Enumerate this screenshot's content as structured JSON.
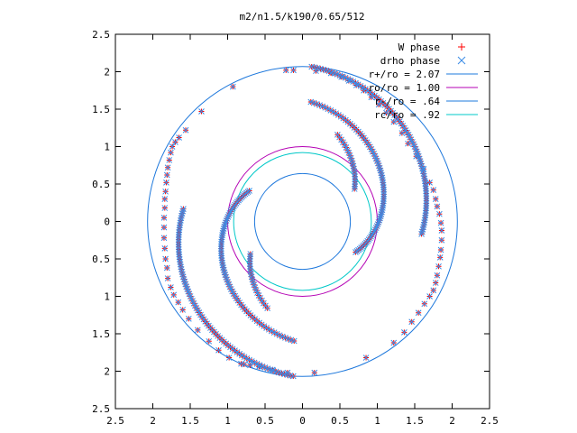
{
  "chart_data": {
    "type": "scatter",
    "title": "m2/n1.5/k190/0.65/512",
    "xlabel": "",
    "ylabel": "",
    "xlim": [
      -2.5,
      2.5
    ],
    "ylim": [
      -2.5,
      2.5
    ],
    "grid": false,
    "legend_position": "top-right",
    "x_ticks": [
      -2.5,
      -2,
      -1.5,
      -1,
      -0.5,
      0,
      0.5,
      1,
      1.5,
      2,
      2.5
    ],
    "x_tick_labels": [
      "2.5",
      "2",
      "1.5",
      "1",
      "0.5",
      "0",
      "0.5",
      "1",
      "1.5",
      "2",
      "2.5"
    ],
    "y_ticks": [
      2.5,
      2,
      1.5,
      1,
      0.5,
      0,
      -0.5,
      -1,
      -1.5,
      -2,
      -2.5
    ],
    "y_tick_labels": [
      "2.5",
      "2",
      "1.5",
      "1",
      "0.5",
      "0",
      "0.5",
      "1",
      "1.5",
      "2",
      "2.5"
    ],
    "legend": [
      {
        "label": "W phase",
        "marker": "+",
        "color": "#ff0000"
      },
      {
        "label": "drho phase",
        "marker": "x",
        "color": "#3c8ce6"
      },
      {
        "label": "r+/ro = 2.07",
        "marker": "line",
        "color": "#1e78dc"
      },
      {
        "label": "ro/ro = 1.00",
        "marker": "line",
        "color": "#b400b4"
      },
      {
        "label": "r-/ro = .64",
        "marker": "line",
        "color": "#1e78dc"
      },
      {
        "label": "rc/ro = .92",
        "marker": "line",
        "color": "#00c8c8"
      }
    ],
    "circles": [
      {
        "name": "r+/ro = 2.07",
        "radius": 2.07,
        "color": "#1e78dc"
      },
      {
        "name": "ro/ro = 1.00",
        "radius": 1.0,
        "color": "#b400b4"
      },
      {
        "name": "r-/ro = .64",
        "radius": 0.64,
        "color": "#1e78dc"
      },
      {
        "name": "rc/ro = .92",
        "radius": 0.92,
        "color": "#00c8c8"
      }
    ],
    "series": [
      {
        "name": "W phase",
        "marker": "+",
        "color": "#ff0000",
        "points": [
          [
            -0.12,
            2.02
          ],
          [
            0.18,
            2.01
          ],
          [
            0.38,
            1.98
          ],
          [
            0.52,
            1.93
          ],
          [
            0.62,
            1.88
          ],
          [
            0.72,
            1.82
          ],
          [
            0.82,
            1.75
          ],
          [
            0.92,
            1.66
          ],
          [
            1.02,
            1.56
          ],
          [
            1.12,
            1.45
          ],
          [
            1.22,
            1.33
          ],
          [
            1.33,
            1.18
          ],
          [
            1.41,
            1.04
          ],
          [
            1.52,
            0.87
          ],
          [
            1.62,
            0.7
          ],
          [
            1.7,
            0.52
          ],
          [
            1.75,
            0.42
          ],
          [
            1.78,
            0.3
          ],
          [
            1.8,
            0.2
          ],
          [
            1.83,
            0.1
          ],
          [
            1.85,
            -0.02
          ],
          [
            1.86,
            -0.12
          ],
          [
            1.86,
            -0.25
          ],
          [
            1.85,
            -0.38
          ],
          [
            1.84,
            -0.48
          ],
          [
            1.82,
            -0.6
          ],
          [
            1.8,
            -0.72
          ],
          [
            1.78,
            -0.82
          ],
          [
            1.75,
            -0.92
          ],
          [
            1.7,
            -1.0
          ],
          [
            1.63,
            -1.1
          ],
          [
            1.55,
            -1.22
          ],
          [
            1.46,
            -1.34
          ],
          [
            1.36,
            -1.48
          ],
          [
            1.22,
            -1.62
          ],
          [
            0.85,
            -1.82
          ],
          [
            0.16,
            -2.02
          ],
          [
            -0.2,
            -2.02
          ],
          [
            -0.4,
            -1.98
          ],
          [
            -0.58,
            -1.94
          ],
          [
            -0.7,
            -1.92
          ],
          [
            -0.78,
            -1.91
          ],
          [
            -0.82,
            -1.9
          ],
          [
            -0.98,
            -1.82
          ],
          [
            -1.12,
            -1.72
          ],
          [
            -1.25,
            -1.6
          ],
          [
            -1.4,
            -1.45
          ],
          [
            -1.52,
            -1.3
          ],
          [
            -1.6,
            -1.18
          ],
          [
            -1.66,
            -1.08
          ],
          [
            -1.72,
            -0.98
          ],
          [
            -1.76,
            -0.88
          ],
          [
            -1.8,
            -0.76
          ],
          [
            -1.81,
            -0.62
          ],
          [
            -1.83,
            -0.5
          ],
          [
            -1.84,
            -0.36
          ],
          [
            -1.85,
            -0.22
          ],
          [
            -1.85,
            -0.08
          ],
          [
            -1.85,
            0.05
          ],
          [
            -1.84,
            0.18
          ],
          [
            -1.84,
            0.3
          ],
          [
            -1.83,
            0.4
          ],
          [
            -1.82,
            0.52
          ],
          [
            -1.81,
            0.62
          ],
          [
            -1.8,
            0.72
          ],
          [
            -1.78,
            0.82
          ],
          [
            -1.76,
            0.92
          ],
          [
            -1.74,
            1.0
          ],
          [
            -1.7,
            1.06
          ],
          [
            -1.65,
            1.12
          ],
          [
            -1.56,
            1.22
          ],
          [
            -1.35,
            1.47
          ],
          [
            -0.93,
            1.8
          ],
          [
            -0.22,
            2.02
          ]
        ],
        "arms": [
          {
            "r_start": 2.07,
            "r_end": 1.6,
            "theta_start_deg": 86.6,
            "theta_end_deg": -6.0,
            "count": 85
          },
          {
            "r_start": 1.6,
            "r_end": 0.82,
            "theta_start_deg": 266.0,
            "theta_end_deg": 150.0,
            "count": 80
          },
          {
            "r_start": 2.07,
            "r_end": 1.6,
            "theta_start_deg": 266.6,
            "theta_end_deg": 174.0,
            "count": 85
          },
          {
            "r_start": 1.6,
            "r_end": 0.82,
            "theta_start_deg": 86.0,
            "theta_end_deg": -30.0,
            "count": 80
          },
          {
            "r_start": 0.82,
            "r_end": 1.25,
            "theta_start_deg": 32.0,
            "theta_end_deg": 68.0,
            "count": 22
          },
          {
            "r_start": 0.82,
            "r_end": 1.25,
            "theta_start_deg": 212.0,
            "theta_end_deg": 248.0,
            "count": 22
          }
        ]
      },
      {
        "name": "drho phase",
        "marker": "x",
        "color": "#3c8ce6",
        "points": [
          [
            -0.12,
            2.02
          ],
          [
            0.18,
            2.01
          ],
          [
            0.38,
            1.98
          ],
          [
            0.52,
            1.93
          ],
          [
            0.62,
            1.88
          ],
          [
            0.72,
            1.82
          ],
          [
            0.82,
            1.75
          ],
          [
            0.92,
            1.66
          ],
          [
            1.02,
            1.56
          ],
          [
            1.12,
            1.45
          ],
          [
            1.22,
            1.33
          ],
          [
            1.33,
            1.18
          ],
          [
            1.41,
            1.04
          ],
          [
            1.52,
            0.87
          ],
          [
            1.62,
            0.7
          ],
          [
            1.7,
            0.52
          ],
          [
            1.75,
            0.42
          ],
          [
            1.78,
            0.3
          ],
          [
            1.8,
            0.2
          ],
          [
            1.83,
            0.1
          ],
          [
            1.85,
            -0.02
          ],
          [
            1.86,
            -0.12
          ],
          [
            1.86,
            -0.25
          ],
          [
            1.85,
            -0.38
          ],
          [
            1.84,
            -0.48
          ],
          [
            1.82,
            -0.6
          ],
          [
            1.8,
            -0.72
          ],
          [
            1.78,
            -0.82
          ],
          [
            1.75,
            -0.92
          ],
          [
            1.7,
            -1.0
          ],
          [
            1.63,
            -1.1
          ],
          [
            1.55,
            -1.22
          ],
          [
            1.46,
            -1.34
          ],
          [
            1.36,
            -1.48
          ],
          [
            1.22,
            -1.62
          ],
          [
            0.85,
            -1.82
          ],
          [
            0.16,
            -2.02
          ],
          [
            -0.2,
            -2.02
          ],
          [
            -0.4,
            -1.98
          ],
          [
            -0.58,
            -1.94
          ],
          [
            -0.7,
            -1.92
          ],
          [
            -0.78,
            -1.91
          ],
          [
            -0.82,
            -1.9
          ],
          [
            -0.98,
            -1.82
          ],
          [
            -1.12,
            -1.72
          ],
          [
            -1.25,
            -1.6
          ],
          [
            -1.4,
            -1.45
          ],
          [
            -1.52,
            -1.3
          ],
          [
            -1.6,
            -1.18
          ],
          [
            -1.66,
            -1.08
          ],
          [
            -1.72,
            -0.98
          ],
          [
            -1.76,
            -0.88
          ],
          [
            -1.8,
            -0.76
          ],
          [
            -1.81,
            -0.62
          ],
          [
            -1.83,
            -0.5
          ],
          [
            -1.84,
            -0.36
          ],
          [
            -1.85,
            -0.22
          ],
          [
            -1.85,
            -0.08
          ],
          [
            -1.85,
            0.05
          ],
          [
            -1.84,
            0.18
          ],
          [
            -1.84,
            0.3
          ],
          [
            -1.83,
            0.4
          ],
          [
            -1.82,
            0.52
          ],
          [
            -1.81,
            0.62
          ],
          [
            -1.8,
            0.72
          ],
          [
            -1.78,
            0.82
          ],
          [
            -1.76,
            0.92
          ],
          [
            -1.74,
            1.0
          ],
          [
            -1.7,
            1.06
          ],
          [
            -1.65,
            1.12
          ],
          [
            -1.56,
            1.22
          ],
          [
            -1.35,
            1.47
          ],
          [
            -0.93,
            1.8
          ],
          [
            -0.22,
            2.02
          ]
        ],
        "arms": [
          {
            "r_start": 2.07,
            "r_end": 1.6,
            "theta_start_deg": 86.6,
            "theta_end_deg": -6.0,
            "count": 85
          },
          {
            "r_start": 1.6,
            "r_end": 0.82,
            "theta_start_deg": 266.0,
            "theta_end_deg": 150.0,
            "count": 80
          },
          {
            "r_start": 2.07,
            "r_end": 1.6,
            "theta_start_deg": 266.6,
            "theta_end_deg": 174.0,
            "count": 85
          },
          {
            "r_start": 1.6,
            "r_end": 0.82,
            "theta_start_deg": 86.0,
            "theta_end_deg": -30.0,
            "count": 80
          },
          {
            "r_start": 0.82,
            "r_end": 1.25,
            "theta_start_deg": 32.0,
            "theta_end_deg": 68.0,
            "count": 22
          },
          {
            "r_start": 0.82,
            "r_end": 1.25,
            "theta_start_deg": 212.0,
            "theta_end_deg": 248.0,
            "count": 22
          }
        ]
      }
    ]
  }
}
